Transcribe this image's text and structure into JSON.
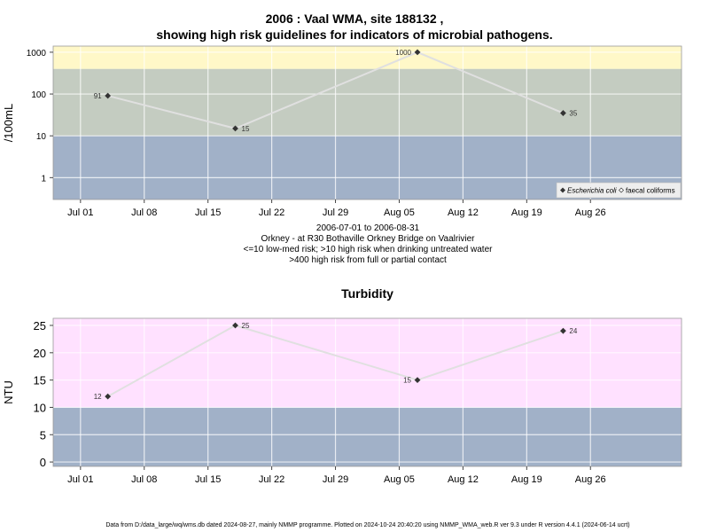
{
  "charts_title": {
    "line1": "2006 : Vaal WMA, site 188132 ,",
    "line2": "showing high risk guidelines for indicators of microbial pathogens."
  },
  "info": {
    "date_range": "2006-07-01 to 2006-08-31",
    "location": "Orkney - at R30 Bothaville Orkney Bridge on Vaalrivier",
    "guideline_1": "<=10 low-med risk; >10 high risk when drinking untreated water",
    "guideline_2": ">400 high risk from full or partial contact"
  },
  "footer": "Data from D:/data_large/wq/wms.db dated 2024-08-27, mainly NMMP programme. Plotted on 2024-10-24 20:40:20 using NMMP_WMA_web.R ver 9.3 under R version 4.4.1 (2024-06-14 ucrt)",
  "colors": {
    "band_low": "#a1b1c8",
    "band_mid": "#c4ccc1",
    "band_high": "#fff8c8",
    "band_turbid": "#ffe1ff",
    "line": "#e0e0e0",
    "marker": "#333333"
  },
  "chart_data": [
    {
      "type": "line",
      "title": "",
      "xlabel": "",
      "ylabel": "/100mL",
      "y_scale": "log",
      "ylim": [
        0.3,
        1400
      ],
      "yticks": [
        1,
        10,
        100,
        1000
      ],
      "ytick_labels": [
        "1",
        "10",
        "100",
        "1000"
      ],
      "x_range": [
        "2006-06-28",
        "2006-09-05"
      ],
      "xticks": [
        "2006-07-01",
        "2006-07-08",
        "2006-07-15",
        "2006-07-22",
        "2006-07-29",
        "2006-08-05",
        "2006-08-12",
        "2006-08-19",
        "2006-08-26"
      ],
      "xtick_labels": [
        "Jul 01",
        "Jul 08",
        "Jul 15",
        "Jul 22",
        "Jul 29",
        "Aug 05",
        "Aug 12",
        "Aug 19",
        "Aug 26"
      ],
      "bands": [
        {
          "from": 0.3,
          "to": 10,
          "color": "#a1b1c8"
        },
        {
          "from": 10,
          "to": 400,
          "color": "#c4ccc1"
        },
        {
          "from": 400,
          "to": 1400,
          "color": "#fff8c8"
        }
      ],
      "grid": true,
      "legend_position": "bottom-right",
      "legend": [
        {
          "label": "Escherichia coli",
          "marker": "filled-diamond"
        },
        {
          "label": "faecal coliforms",
          "marker": "open-diamond"
        }
      ],
      "series": [
        {
          "name": "Escherichia coli",
          "x": [
            "2006-07-04",
            "2006-07-18",
            "2006-08-07",
            "2006-08-23"
          ],
          "values": [
            91,
            15,
            1000,
            35
          ],
          "labels": [
            "91",
            "15",
            "1000",
            "35"
          ],
          "label_side": [
            "left",
            "right",
            "left",
            "right"
          ]
        }
      ]
    },
    {
      "type": "line",
      "title": "Turbidity",
      "xlabel": "",
      "ylabel": "NTU",
      "y_scale": "linear",
      "ylim": [
        -0.8,
        26.3
      ],
      "yticks": [
        0,
        5,
        10,
        15,
        20,
        25
      ],
      "ytick_labels": [
        "0",
        "5",
        "10",
        "15",
        "20",
        "25"
      ],
      "x_range": [
        "2006-06-28",
        "2006-09-05"
      ],
      "xticks": [
        "2006-07-01",
        "2006-07-08",
        "2006-07-15",
        "2006-07-22",
        "2006-07-29",
        "2006-08-05",
        "2006-08-12",
        "2006-08-19",
        "2006-08-26"
      ],
      "xtick_labels": [
        "Jul 01",
        "Jul 08",
        "Jul 15",
        "Jul 22",
        "Jul 29",
        "Aug 05",
        "Aug 12",
        "Aug 19",
        "Aug 26"
      ],
      "bands": [
        {
          "from": -0.8,
          "to": 10,
          "color": "#a1b1c8"
        },
        {
          "from": 10,
          "to": 26.3,
          "color": "#ffe1ff"
        }
      ],
      "grid": true,
      "series": [
        {
          "name": "",
          "x": [
            "2006-07-04",
            "2006-07-18",
            "2006-08-07",
            "2006-08-23"
          ],
          "values": [
            12,
            25,
            15,
            24
          ],
          "labels": [
            "12",
            "25",
            "15",
            "24"
          ],
          "label_side": [
            "left",
            "right",
            "left",
            "right"
          ]
        }
      ]
    }
  ]
}
